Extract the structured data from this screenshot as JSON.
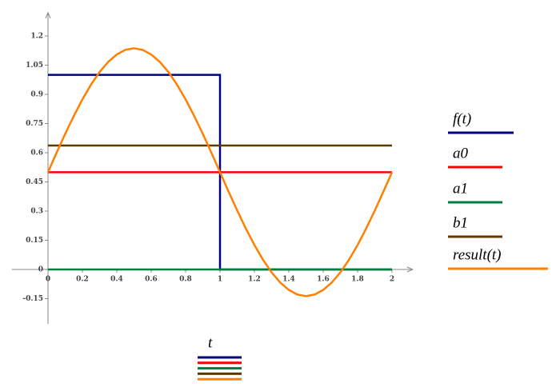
{
  "chart_data": {
    "type": "line",
    "xlabel": "t",
    "xlim": [
      -0.21,
      2.12
    ],
    "ylim": [
      -0.28,
      1.32
    ],
    "xticks": [
      0,
      0.2,
      0.4,
      0.6,
      0.8,
      1,
      1.2,
      1.4,
      1.6,
      1.8,
      2
    ],
    "yticks": [
      -0.15,
      0,
      0.15,
      0.3,
      0.45,
      0.6,
      0.75,
      0.9,
      1.05,
      1.2
    ],
    "series": [
      {
        "name": "f(t)",
        "color": "#000080",
        "x": [
          0,
          1,
          1,
          2
        ],
        "values": [
          1,
          1,
          0,
          0
        ]
      },
      {
        "name": "a0",
        "color": "#ff0000",
        "x": [
          0,
          2
        ],
        "values": [
          0.5,
          0.5
        ]
      },
      {
        "name": "a1",
        "color": "#008040",
        "x": [
          0,
          2
        ],
        "values": [
          0,
          0
        ]
      },
      {
        "name": "b1",
        "color": "#5c3a00",
        "x": [
          0,
          2
        ],
        "values": [
          0.637,
          0.637
        ]
      },
      {
        "name": "result(t)",
        "color": "#ff8000",
        "x": [
          0,
          0.05,
          0.1,
          0.15,
          0.2,
          0.25,
          0.3,
          0.35,
          0.4,
          0.45,
          0.5,
          0.55,
          0.6,
          0.65,
          0.7,
          0.75,
          0.8,
          0.85,
          0.9,
          0.95,
          1,
          1.05,
          1.1,
          1.15,
          1.2,
          1.25,
          1.3,
          1.35,
          1.4,
          1.45,
          1.5,
          1.55,
          1.6,
          1.65,
          1.7,
          1.75,
          1.8,
          1.85,
          1.9,
          1.95,
          2
        ],
        "values": [
          0.5,
          0.6,
          0.697,
          0.789,
          0.874,
          0.95,
          1.015,
          1.067,
          1.105,
          1.129,
          1.137,
          1.129,
          1.105,
          1.067,
          1.015,
          0.95,
          0.874,
          0.789,
          0.697,
          0.6,
          0.5,
          0.4,
          0.303,
          0.211,
          0.126,
          0.05,
          -0.015,
          -0.067,
          -0.105,
          -0.129,
          -0.137,
          -0.129,
          -0.105,
          -0.067,
          -0.015,
          0.05,
          0.126,
          0.211,
          0.303,
          0.4,
          0.5
        ]
      }
    ]
  }
}
